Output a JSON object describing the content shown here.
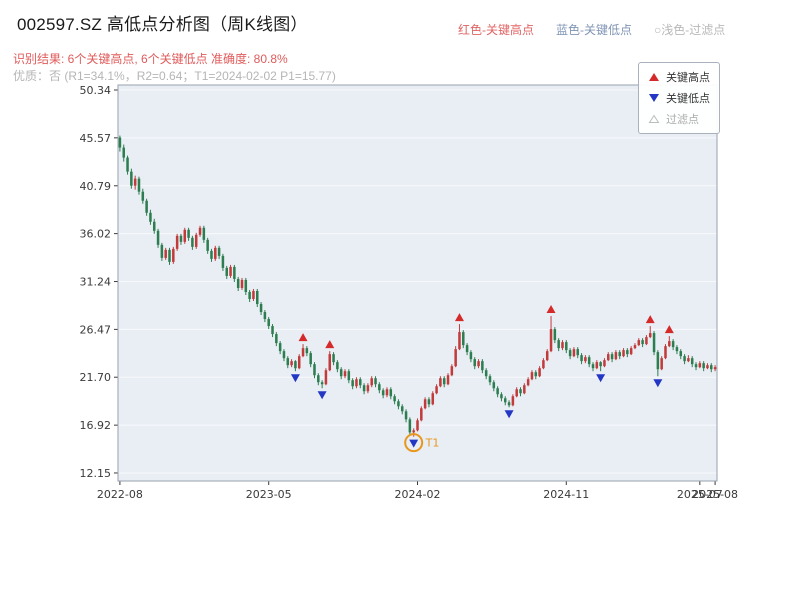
{
  "header": {
    "title": "002597.SZ 高低点分析图（周K线图）",
    "title_color": "#1a1a1a",
    "legend_top": [
      {
        "label": "红色-关键高点",
        "color": "#e06464"
      },
      {
        "label": "蓝色-关键低点",
        "color": "#8095b5"
      },
      {
        "label": "○浅色-过滤点",
        "color": "#b8b8b8"
      }
    ],
    "result_line": "识别结果: 6个关键高点, 6个关键低点  准确度: 80.8%",
    "result_color": "#e05b5b",
    "quality_line": "优质：否 (R1=34.1%，R2=0.64；T1=2024-02-02 P1=15.77)",
    "quality_color": "#b5b5b5"
  },
  "chart_data": {
    "type": "candlestick",
    "symbol": "002597.SZ",
    "period": "weekly",
    "start_label": "2022-08",
    "end_label": "2025-08",
    "ylim": [
      11.35,
      50.84
    ],
    "grid": true,
    "y_ticks": [
      "50.34",
      "45.57",
      "40.79",
      "36.02",
      "31.24",
      "26.47",
      "21.70",
      "16.92",
      "12.15"
    ],
    "x_ticks": [
      {
        "label": "2022-08",
        "week": 0
      },
      {
        "label": "2023-05",
        "week": 39
      },
      {
        "label": "2024-02",
        "week": 78
      },
      {
        "label": "2024-11",
        "week": 117
      },
      {
        "label": "2025-07",
        "week": 152
      },
      {
        "label": "2025-08",
        "week": 156
      }
    ],
    "candles": [
      [
        45.6,
        45.8,
        44.2,
        44.6
      ],
      [
        44.6,
        44.9,
        43.2,
        43.6
      ],
      [
        43.6,
        43.8,
        41.9,
        42.2
      ],
      [
        42.2,
        42.5,
        40.5,
        40.8
      ],
      [
        40.8,
        41.8,
        40.4,
        41.5
      ],
      [
        41.5,
        41.7,
        39.9,
        40.2
      ],
      [
        40.2,
        40.5,
        39.0,
        39.3
      ],
      [
        39.3,
        39.5,
        37.8,
        38.1
      ],
      [
        38.1,
        38.4,
        36.9,
        37.2
      ],
      [
        37.2,
        37.5,
        36.0,
        36.3
      ],
      [
        36.3,
        36.5,
        34.6,
        34.9
      ],
      [
        34.9,
        35.1,
        33.3,
        33.6
      ],
      [
        33.6,
        34.6,
        33.4,
        34.4
      ],
      [
        34.4,
        34.6,
        32.9,
        33.2
      ],
      [
        33.2,
        34.7,
        33.0,
        34.5
      ],
      [
        34.5,
        36.0,
        34.3,
        35.8
      ],
      [
        35.8,
        36.0,
        34.9,
        35.2
      ],
      [
        35.2,
        36.6,
        35.0,
        36.4
      ],
      [
        36.4,
        36.6,
        35.3,
        35.6
      ],
      [
        35.6,
        35.8,
        34.4,
        34.7
      ],
      [
        34.7,
        36.1,
        34.5,
        35.9
      ],
      [
        35.9,
        36.8,
        35.7,
        36.6
      ],
      [
        36.6,
        36.8,
        35.1,
        35.4
      ],
      [
        35.4,
        35.6,
        34.0,
        34.3
      ],
      [
        34.3,
        34.5,
        33.2,
        33.5
      ],
      [
        33.5,
        34.8,
        33.3,
        34.6
      ],
      [
        34.6,
        34.8,
        33.5,
        33.8
      ],
      [
        33.8,
        34.0,
        32.3,
        32.6
      ],
      [
        32.6,
        32.8,
        31.5,
        31.8
      ],
      [
        31.8,
        32.9,
        31.6,
        32.7
      ],
      [
        32.7,
        32.9,
        31.2,
        31.5
      ],
      [
        31.5,
        31.7,
        30.3,
        30.6
      ],
      [
        30.6,
        31.6,
        30.4,
        31.4
      ],
      [
        31.4,
        31.6,
        29.9,
        30.2
      ],
      [
        30.2,
        30.4,
        29.2,
        29.5
      ],
      [
        29.5,
        30.5,
        29.3,
        30.3
      ],
      [
        30.3,
        30.5,
        28.7,
        29.0
      ],
      [
        29.0,
        29.2,
        27.9,
        28.2
      ],
      [
        28.2,
        28.4,
        27.2,
        27.5
      ],
      [
        27.5,
        27.7,
        26.5,
        26.8
      ],
      [
        26.8,
        27.0,
        25.7,
        26.0
      ],
      [
        26.0,
        26.2,
        24.8,
        25.1
      ],
      [
        25.1,
        25.3,
        24.0,
        24.3
      ],
      [
        24.3,
        24.5,
        23.3,
        23.6
      ],
      [
        23.6,
        23.8,
        22.6,
        22.9
      ],
      [
        22.9,
        23.5,
        22.7,
        23.3
      ],
      [
        23.3,
        23.4,
        22.3,
        22.6
      ],
      [
        22.6,
        24.0,
        22.5,
        23.8
      ],
      [
        23.8,
        25.0,
        23.7,
        24.6
      ],
      [
        24.6,
        24.8,
        23.8,
        24.1
      ],
      [
        24.1,
        24.3,
        22.7,
        23.0
      ],
      [
        23.0,
        23.2,
        21.6,
        21.9
      ],
      [
        21.9,
        22.1,
        20.9,
        21.2
      ],
      [
        21.2,
        21.4,
        20.6,
        21.0
      ],
      [
        21.0,
        22.6,
        20.9,
        22.4
      ],
      [
        22.4,
        24.3,
        22.3,
        24.0
      ],
      [
        24.0,
        24.2,
        22.9,
        23.2
      ],
      [
        23.2,
        23.4,
        22.2,
        22.5
      ],
      [
        22.5,
        22.7,
        21.5,
        21.8
      ],
      [
        21.8,
        22.5,
        21.6,
        22.3
      ],
      [
        22.3,
        22.5,
        21.1,
        21.4
      ],
      [
        21.4,
        21.6,
        20.5,
        20.8
      ],
      [
        20.8,
        21.7,
        20.6,
        21.5
      ],
      [
        21.5,
        21.7,
        20.6,
        20.9
      ],
      [
        20.9,
        21.1,
        20.0,
        20.3
      ],
      [
        20.3,
        21.1,
        20.1,
        20.9
      ],
      [
        20.9,
        21.8,
        20.7,
        21.6
      ],
      [
        21.6,
        21.8,
        20.7,
        21.0
      ],
      [
        21.0,
        21.2,
        20.1,
        20.4
      ],
      [
        20.4,
        20.6,
        19.6,
        19.9
      ],
      [
        19.9,
        20.7,
        19.7,
        20.5
      ],
      [
        20.5,
        20.7,
        19.5,
        19.8
      ],
      [
        19.8,
        20.0,
        19.0,
        19.3
      ],
      [
        19.3,
        19.5,
        18.5,
        18.8
      ],
      [
        18.8,
        19.0,
        18.0,
        18.3
      ],
      [
        18.3,
        18.5,
        17.2,
        17.5
      ],
      [
        17.5,
        17.7,
        15.9,
        16.2
      ],
      [
        16.2,
        16.6,
        15.77,
        16.4
      ],
      [
        16.4,
        17.6,
        16.3,
        17.4
      ],
      [
        17.4,
        18.8,
        17.3,
        18.6
      ],
      [
        18.6,
        19.7,
        18.5,
        19.5
      ],
      [
        19.5,
        19.7,
        18.7,
        19.0
      ],
      [
        19.0,
        20.3,
        18.9,
        20.1
      ],
      [
        20.1,
        21.0,
        20.0,
        20.8
      ],
      [
        20.8,
        21.8,
        20.7,
        21.6
      ],
      [
        21.6,
        21.8,
        20.7,
        21.0
      ],
      [
        21.0,
        22.1,
        20.9,
        21.9
      ],
      [
        21.9,
        23.0,
        21.8,
        22.8
      ],
      [
        22.8,
        24.8,
        22.7,
        24.5
      ],
      [
        24.5,
        27.0,
        24.4,
        26.2
      ],
      [
        26.2,
        26.4,
        24.6,
        24.9
      ],
      [
        24.9,
        25.1,
        23.9,
        24.2
      ],
      [
        24.2,
        24.4,
        23.2,
        23.5
      ],
      [
        23.5,
        23.7,
        22.5,
        22.8
      ],
      [
        22.8,
        23.5,
        22.6,
        23.3
      ],
      [
        23.3,
        23.5,
        22.1,
        22.4
      ],
      [
        22.4,
        22.6,
        21.5,
        21.8
      ],
      [
        21.8,
        22.0,
        20.9,
        21.2
      ],
      [
        21.2,
        21.4,
        20.3,
        20.6
      ],
      [
        20.6,
        20.8,
        19.7,
        20.0
      ],
      [
        20.0,
        20.2,
        19.3,
        19.6
      ],
      [
        19.6,
        19.8,
        18.9,
        19.2
      ],
      [
        19.2,
        19.4,
        18.7,
        18.9
      ],
      [
        18.9,
        20.0,
        18.8,
        19.8
      ],
      [
        19.8,
        20.7,
        19.7,
        20.5
      ],
      [
        20.5,
        20.7,
        19.8,
        20.1
      ],
      [
        20.1,
        21.1,
        20.0,
        20.9
      ],
      [
        20.9,
        21.7,
        20.8,
        21.5
      ],
      [
        21.5,
        22.4,
        21.4,
        22.2
      ],
      [
        22.2,
        22.4,
        21.5,
        21.8
      ],
      [
        21.8,
        22.8,
        21.7,
        22.6
      ],
      [
        22.6,
        23.6,
        22.5,
        23.4
      ],
      [
        23.4,
        24.5,
        23.3,
        24.3
      ],
      [
        24.3,
        27.8,
        24.2,
        26.5
      ],
      [
        26.5,
        26.7,
        25.1,
        25.4
      ],
      [
        25.4,
        25.6,
        24.3,
        24.6
      ],
      [
        24.6,
        25.4,
        24.4,
        25.2
      ],
      [
        25.2,
        25.4,
        24.1,
        24.4
      ],
      [
        24.4,
        24.6,
        23.5,
        23.8
      ],
      [
        23.8,
        24.7,
        23.7,
        24.5
      ],
      [
        24.5,
        24.7,
        23.6,
        23.9
      ],
      [
        23.9,
        24.1,
        23.0,
        23.3
      ],
      [
        23.3,
        23.9,
        23.1,
        23.7
      ],
      [
        23.7,
        23.9,
        22.7,
        23.0
      ],
      [
        23.0,
        23.2,
        22.3,
        22.6
      ],
      [
        22.6,
        23.4,
        22.5,
        23.2
      ],
      [
        23.2,
        23.3,
        22.3,
        22.8
      ],
      [
        22.8,
        23.6,
        22.7,
        23.4
      ],
      [
        23.4,
        24.2,
        23.3,
        24.0
      ],
      [
        24.0,
        24.2,
        23.2,
        23.5
      ],
      [
        23.5,
        24.4,
        23.4,
        24.2
      ],
      [
        24.2,
        24.4,
        23.5,
        23.8
      ],
      [
        23.8,
        24.6,
        23.7,
        24.4
      ],
      [
        24.4,
        24.6,
        23.7,
        24.0
      ],
      [
        24.0,
        24.8,
        23.9,
        24.6
      ],
      [
        24.6,
        25.1,
        24.5,
        24.9
      ],
      [
        24.9,
        25.6,
        24.8,
        25.4
      ],
      [
        25.4,
        25.6,
        24.7,
        25.0
      ],
      [
        25.0,
        25.9,
        24.9,
        25.7
      ],
      [
        25.7,
        26.8,
        25.6,
        26.1
      ],
      [
        26.1,
        26.3,
        23.9,
        24.2
      ],
      [
        24.2,
        24.4,
        21.8,
        22.5
      ],
      [
        22.5,
        23.8,
        22.4,
        23.6
      ],
      [
        23.6,
        25.0,
        23.5,
        24.8
      ],
      [
        24.8,
        25.8,
        24.7,
        25.3
      ],
      [
        25.3,
        25.5,
        24.4,
        24.7
      ],
      [
        24.7,
        24.9,
        24.0,
        24.3
      ],
      [
        24.3,
        24.5,
        23.5,
        23.8
      ],
      [
        23.8,
        24.0,
        23.0,
        23.3
      ],
      [
        23.3,
        23.9,
        23.2,
        23.6
      ],
      [
        23.6,
        23.8,
        22.7,
        23.0
      ],
      [
        23.0,
        23.2,
        22.4,
        22.7
      ],
      [
        22.7,
        23.3,
        22.6,
        23.1
      ],
      [
        23.1,
        23.3,
        22.3,
        22.6
      ],
      [
        22.6,
        23.1,
        22.5,
        22.9
      ],
      [
        22.9,
        23.1,
        22.2,
        22.5
      ],
      [
        22.5,
        22.9,
        22.3,
        22.7
      ]
    ],
    "key_high_weeks": [
      48,
      55,
      89,
      113,
      139,
      144
    ],
    "key_low_weeks": [
      46,
      53,
      77,
      102,
      126,
      141
    ],
    "t1": {
      "week": 77,
      "label": "T1",
      "price": 15.77,
      "date": "2024-02-02"
    },
    "legend_box": [
      {
        "label": "关键高点",
        "marker": "up-triangle",
        "color": "#d42a2a",
        "text_color": "#333333"
      },
      {
        "label": "关键低点",
        "marker": "down-triangle",
        "color": "#2336c4",
        "text_color": "#333333"
      },
      {
        "label": "过滤点",
        "marker": "hollow-triangle",
        "color": "#bcbcbc",
        "text_color": "#aaaaaa"
      }
    ],
    "colors": {
      "up_candle": "#c23b3b",
      "down_candle": "#2c7d4f",
      "key_high_marker": "#d42a2a",
      "key_low_marker": "#2336c4",
      "t1_circle": "#e8971d",
      "plot_bg": "#e9eef5",
      "plot_border": "#98a2ae",
      "grid": "#ffffff",
      "axis_text": "#3a3a3a"
    }
  }
}
